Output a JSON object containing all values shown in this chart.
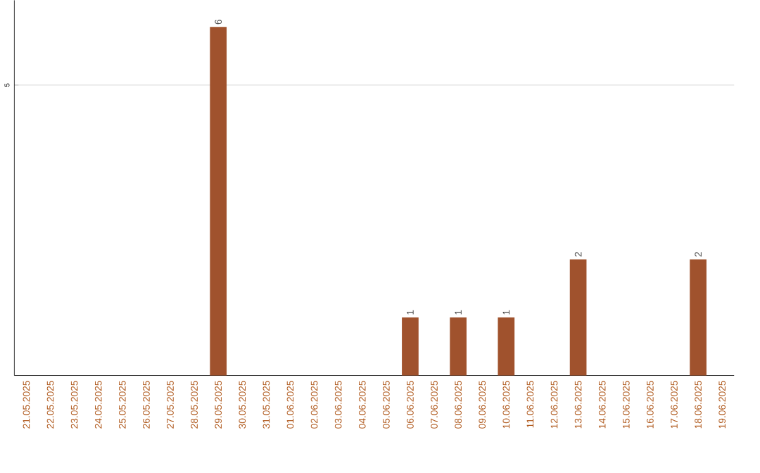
{
  "chart_data": {
    "type": "bar",
    "categories": [
      "21.05.2025",
      "22.05.2025",
      "23.05.2025",
      "24.05.2025",
      "25.05.2025",
      "26.05.2025",
      "27.05.2025",
      "28.05.2025",
      "29.05.2025",
      "30.05.2025",
      "31.05.2025",
      "01.06.2025",
      "02.06.2025",
      "03.06.2025",
      "04.06.2025",
      "05.06.2025",
      "06.06.2025",
      "07.06.2025",
      "08.06.2025",
      "09.06.2025",
      "10.06.2025",
      "11.06.2025",
      "12.06.2025",
      "13.06.2025",
      "14.06.2025",
      "15.06.2025",
      "16.06.2025",
      "17.06.2025",
      "18.06.2025",
      "19.06.2025"
    ],
    "values": [
      0,
      0,
      0,
      0,
      0,
      0,
      0,
      0,
      6,
      0,
      0,
      0,
      0,
      0,
      0,
      0,
      1,
      0,
      1,
      0,
      1,
      0,
      0,
      2,
      0,
      0,
      0,
      0,
      2,
      0
    ],
    "color": "#a0522d",
    "value_labels": [
      null,
      null,
      null,
      null,
      null,
      null,
      null,
      null,
      "6",
      null,
      null,
      null,
      null,
      null,
      null,
      null,
      "1",
      null,
      "1",
      null,
      "1",
      null,
      null,
      "2",
      null,
      null,
      null,
      null,
      "2",
      null
    ],
    "ylim": [
      0,
      6.46
    ],
    "yticks": [
      5
    ],
    "grid": "y"
  }
}
